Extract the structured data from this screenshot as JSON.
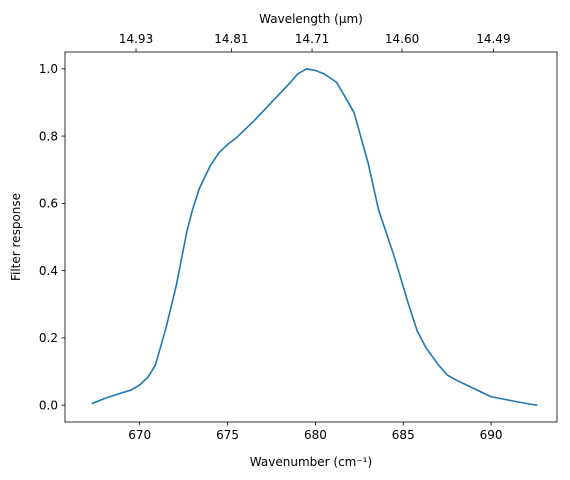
{
  "chart_data": {
    "type": "line",
    "xlabel": "Wavenumber (cm⁻¹)",
    "ylabel": "Filter response",
    "top_xlabel": "Wavelength (μm)",
    "xlim": [
      665.75,
      693.75
    ],
    "ylim": [
      -0.05,
      1.05
    ],
    "x_ticks": [
      670,
      675,
      680,
      685,
      690
    ],
    "y_ticks": [
      0.0,
      0.2,
      0.4,
      0.6,
      0.8,
      1.0
    ],
    "top_ticks": [
      {
        "value": 14.93,
        "label": "14.93"
      },
      {
        "value": 14.81,
        "label": "14.81"
      },
      {
        "value": 14.71,
        "label": "14.71"
      },
      {
        "value": 14.6,
        "label": "14.60"
      },
      {
        "value": 14.49,
        "label": "14.49"
      }
    ],
    "grid": false,
    "series": [
      {
        "color": "#1f77b4",
        "x": [
          667.3,
          668.0,
          669.0,
          669.5,
          670.0,
          670.5,
          670.9,
          671.5,
          672.1,
          672.7,
          673.0,
          673.4,
          674.0,
          674.5,
          675.0,
          675.5,
          676.5,
          677.5,
          678.5,
          679.0,
          679.5,
          680.0,
          680.5,
          681.2,
          681.6,
          682.2,
          683.0,
          683.6,
          684.5,
          685.3,
          685.8,
          686.3,
          687.0,
          687.5,
          688.0,
          689.0,
          690.0,
          691.0,
          692.0,
          692.6
        ],
        "y": [
          0.005,
          0.02,
          0.037,
          0.045,
          0.06,
          0.085,
          0.12,
          0.23,
          0.36,
          0.52,
          0.58,
          0.645,
          0.71,
          0.75,
          0.775,
          0.795,
          0.845,
          0.9,
          0.955,
          0.985,
          1.0,
          0.995,
          0.985,
          0.96,
          0.925,
          0.87,
          0.72,
          0.58,
          0.44,
          0.3,
          0.22,
          0.17,
          0.12,
          0.09,
          0.075,
          0.05,
          0.025,
          0.015,
          0.005,
          0.0
        ]
      }
    ]
  }
}
